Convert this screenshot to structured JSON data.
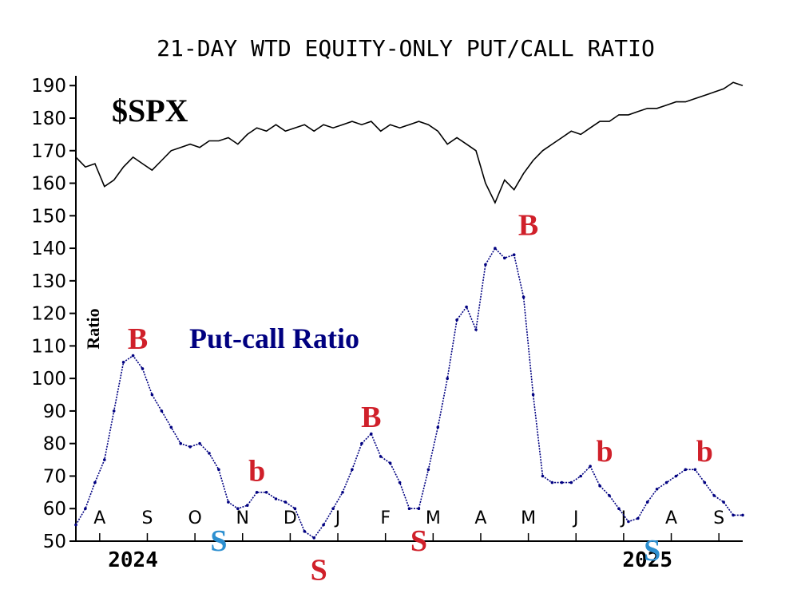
{
  "chart_data": {
    "type": "line",
    "title": "21-DAY WTD EQUITY-ONLY PUT/CALL RATIO",
    "ylabel": "Ratio",
    "y_ticks": [
      50,
      60,
      70,
      80,
      90,
      100,
      110,
      120,
      130,
      140,
      150,
      160,
      170,
      180,
      190
    ],
    "ylim": [
      50,
      193
    ],
    "month_ticks": [
      "A",
      "S",
      "O",
      "N",
      "D",
      "J",
      "F",
      "M",
      "A",
      "M",
      "J",
      "J",
      "A",
      "S"
    ],
    "month_positions": [
      0.5,
      1.5,
      2.5,
      3.5,
      4.5,
      5.5,
      6.5,
      7.5,
      8.5,
      9.5,
      10.5,
      11.5,
      12.5,
      13.5
    ],
    "xlim": [
      0,
      14
    ],
    "year_labels": [
      {
        "label": "2024",
        "month": 1.2
      },
      {
        "label": "2025",
        "month": 12.0
      }
    ],
    "series": [
      {
        "name": "$SPX",
        "color": "#000000",
        "x": [
          0,
          0.2,
          0.4,
          0.6,
          0.8,
          1.0,
          1.2,
          1.4,
          1.6,
          1.8,
          2.0,
          2.2,
          2.4,
          2.6,
          2.8,
          3.0,
          3.2,
          3.4,
          3.6,
          3.8,
          4.0,
          4.2,
          4.4,
          4.6,
          4.8,
          5.0,
          5.2,
          5.4,
          5.6,
          5.8,
          6.0,
          6.2,
          6.4,
          6.6,
          6.8,
          7.0,
          7.2,
          7.4,
          7.6,
          7.8,
          8.0,
          8.2,
          8.4,
          8.6,
          8.8,
          9.0,
          9.2,
          9.4,
          9.6,
          9.8,
          10.0,
          10.2,
          10.4,
          10.6,
          10.8,
          11.0,
          11.2,
          11.4,
          11.6,
          11.8,
          12.0,
          12.2,
          12.4,
          12.6,
          12.8,
          13.0,
          13.2,
          13.4,
          13.6,
          13.8,
          14.0
        ],
        "values": [
          168,
          165,
          166,
          159,
          161,
          165,
          168,
          166,
          164,
          167,
          170,
          171,
          172,
          171,
          173,
          173,
          174,
          172,
          175,
          177,
          176,
          178,
          176,
          177,
          178,
          176,
          178,
          177,
          178,
          179,
          178,
          179,
          176,
          178,
          177,
          178,
          179,
          178,
          176,
          172,
          174,
          172,
          170,
          160,
          154,
          161,
          158,
          163,
          167,
          170,
          172,
          174,
          176,
          175,
          177,
          179,
          179,
          181,
          181,
          182,
          183,
          183,
          184,
          185,
          185,
          186,
          187,
          188,
          189,
          191,
          190
        ]
      },
      {
        "name": "Put-call Ratio",
        "color": "#000080",
        "x": [
          0,
          0.2,
          0.4,
          0.6,
          0.8,
          1.0,
          1.2,
          1.4,
          1.6,
          1.8,
          2.0,
          2.2,
          2.4,
          2.6,
          2.8,
          3.0,
          3.2,
          3.4,
          3.6,
          3.8,
          4.0,
          4.2,
          4.4,
          4.6,
          4.8,
          5.0,
          5.2,
          5.4,
          5.6,
          5.8,
          6.0,
          6.2,
          6.4,
          6.6,
          6.8,
          7.0,
          7.2,
          7.4,
          7.6,
          7.8,
          8.0,
          8.2,
          8.4,
          8.6,
          8.8,
          9.0,
          9.2,
          9.4,
          9.6,
          9.8,
          10.0,
          10.2,
          10.4,
          10.6,
          10.8,
          11.0,
          11.2,
          11.4,
          11.6,
          11.8,
          12.0,
          12.2,
          12.4,
          12.6,
          12.8,
          13.0,
          13.2,
          13.4,
          13.6,
          13.8,
          14.0
        ],
        "values": [
          55,
          60,
          68,
          75,
          90,
          105,
          107,
          103,
          95,
          90,
          85,
          80,
          79,
          80,
          77,
          72,
          62,
          60,
          61,
          65,
          65,
          63,
          62,
          60,
          53,
          51,
          55,
          60,
          65,
          72,
          80,
          83,
          76,
          74,
          68,
          60,
          60,
          72,
          85,
          100,
          118,
          122,
          115,
          135,
          140,
          137,
          138,
          125,
          95,
          70,
          68,
          68,
          68,
          70,
          73,
          67,
          64,
          60,
          56,
          57,
          62,
          66,
          68,
          70,
          72,
          72,
          68,
          64,
          62,
          58,
          58
        ]
      }
    ],
    "annotations": [
      {
        "text": "$SPX",
        "color": "#000000"
      },
      {
        "text": "Put-call Ratio",
        "color": "#000080"
      },
      {
        "text": "B",
        "color": "#d0202a",
        "x": 1.3,
        "y": 113
      },
      {
        "text": "B",
        "color": "#d0202a",
        "x": 6.2,
        "y": 89
      },
      {
        "text": "B",
        "color": "#d0202a",
        "x": 9.5,
        "y": 148
      },
      {
        "text": "b",
        "color": "#d0202a",
        "x": 3.8,
        "y": 72
      },
      {
        "text": "b",
        "color": "#d0202a",
        "x": 11.1,
        "y": 78
      },
      {
        "text": "b",
        "color": "#d0202a",
        "x": 13.2,
        "y": 78
      },
      {
        "text": "S",
        "color": "#2c8fd0",
        "x": 3.0,
        "y": 51
      },
      {
        "text": "S",
        "color": "#d0202a",
        "x": 5.1,
        "y": 42
      },
      {
        "text": "S",
        "color": "#d0202a",
        "x": 7.2,
        "y": 51
      },
      {
        "text": "S",
        "color": "#2c8fd0",
        "x": 12.1,
        "y": 48
      }
    ],
    "grid": false
  }
}
